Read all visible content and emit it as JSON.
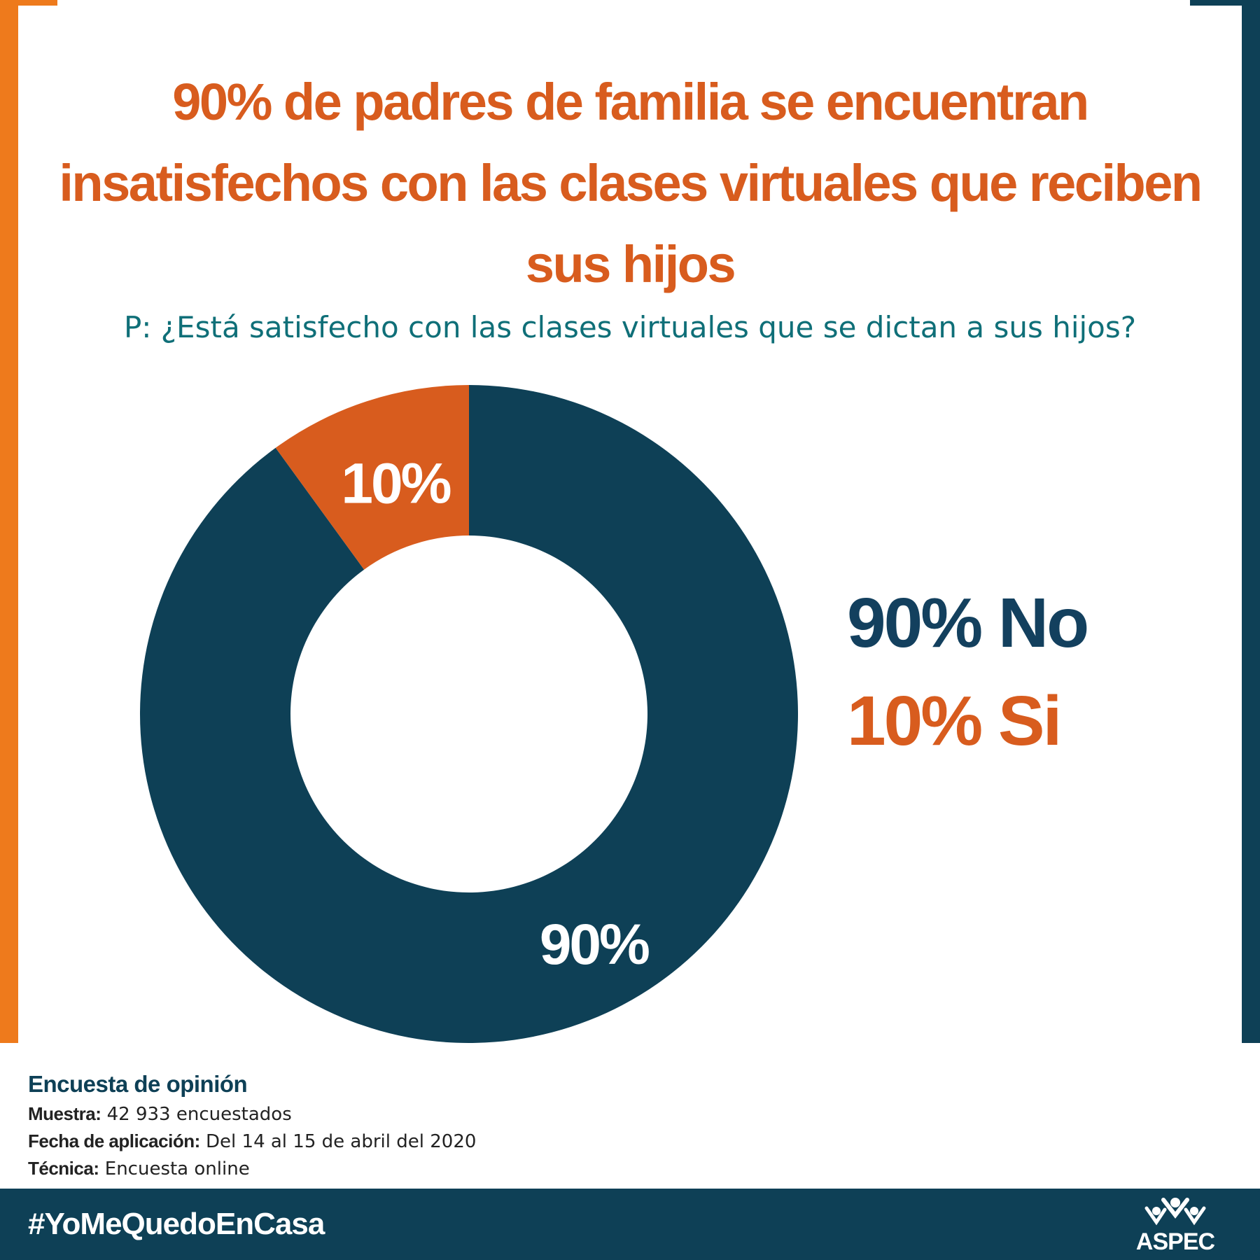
{
  "colors": {
    "navy": "#0e4056",
    "orange": "#d85c1e",
    "frame_orange": "#ee7a1c",
    "teal_text": "#0f6f78",
    "legend_navy": "#13405e"
  },
  "headline": "90% de padres de familia se encuentran insatisfechos con las clases virtuales que reciben sus hijos",
  "question": "P: ¿Está satisfecho con las clases virtuales que se dictan a sus hijos?",
  "chart_data": {
    "type": "pie",
    "title": "",
    "categories": [
      "No",
      "Si"
    ],
    "values": [
      90,
      10
    ],
    "unit": "%",
    "donut": true,
    "colors": [
      "#0e4056",
      "#d85c1e"
    ],
    "data_labels": [
      "90%",
      "10%"
    ],
    "legend": {
      "placement": "right",
      "entries": [
        "90% No",
        "10% Si"
      ]
    }
  },
  "survey": {
    "title": "Encuesta de opinión",
    "rows": [
      {
        "label": "Muestra:",
        "value": "42 933 encuestados"
      },
      {
        "label": "Fecha de aplicación:",
        "value": "Del 14 al 15 de abril del 2020"
      },
      {
        "label": "Técnica:",
        "value": "Encuesta online"
      }
    ]
  },
  "footer": {
    "hashtag": "#YoMeQuedoEnCasa",
    "logo_text": "ASPEC",
    "logo_icon": "people-celebrating-icon"
  }
}
